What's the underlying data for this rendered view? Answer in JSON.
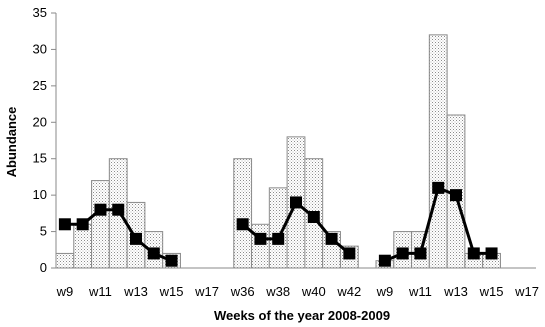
{
  "chart_data": {
    "type": "bar",
    "title": "",
    "xlabel": "Weeks of the year 2008-2009",
    "ylabel": "Abundance",
    "ylim": [
      0,
      35
    ],
    "yticks": [
      0,
      5,
      10,
      15,
      20,
      25,
      30,
      35
    ],
    "grid": false,
    "legend": "none",
    "categories": [
      "w9",
      "w10",
      "w11",
      "w12",
      "w13",
      "w14",
      "w15",
      "w16",
      "w17",
      "",
      "w36",
      "w37",
      "w38",
      "w39",
      "w40",
      "w41",
      "w42",
      "",
      "w9",
      "w10",
      "w11",
      "w12",
      "w13",
      "w14",
      "w15",
      "w16",
      "w17"
    ],
    "tick_labels": [
      "w9",
      "w11",
      "w13",
      "w15",
      "w17",
      "w36",
      "w38",
      "w40",
      "w42",
      "w9",
      "w11",
      "w13",
      "w15",
      "w17"
    ],
    "tick_label_indices": [
      0,
      2,
      4,
      6,
      8,
      10,
      12,
      14,
      16,
      18,
      20,
      22,
      24,
      26
    ],
    "series": [
      {
        "type": "bar",
        "values": [
          2,
          6,
          12,
          15,
          9,
          5,
          2,
          null,
          null,
          null,
          15,
          6,
          11,
          18,
          15,
          5,
          3,
          null,
          1,
          5,
          5,
          32,
          21,
          2,
          2,
          null,
          null
        ],
        "fill": "dotted-gray"
      },
      {
        "type": "line",
        "values": [
          6,
          6,
          8,
          8,
          4,
          2,
          1,
          null,
          null,
          null,
          6,
          4,
          4,
          9,
          7,
          4,
          2,
          null,
          1,
          2,
          2,
          11,
          10,
          2,
          2,
          null,
          null
        ],
        "color": "#000000",
        "marker": "square"
      }
    ]
  }
}
